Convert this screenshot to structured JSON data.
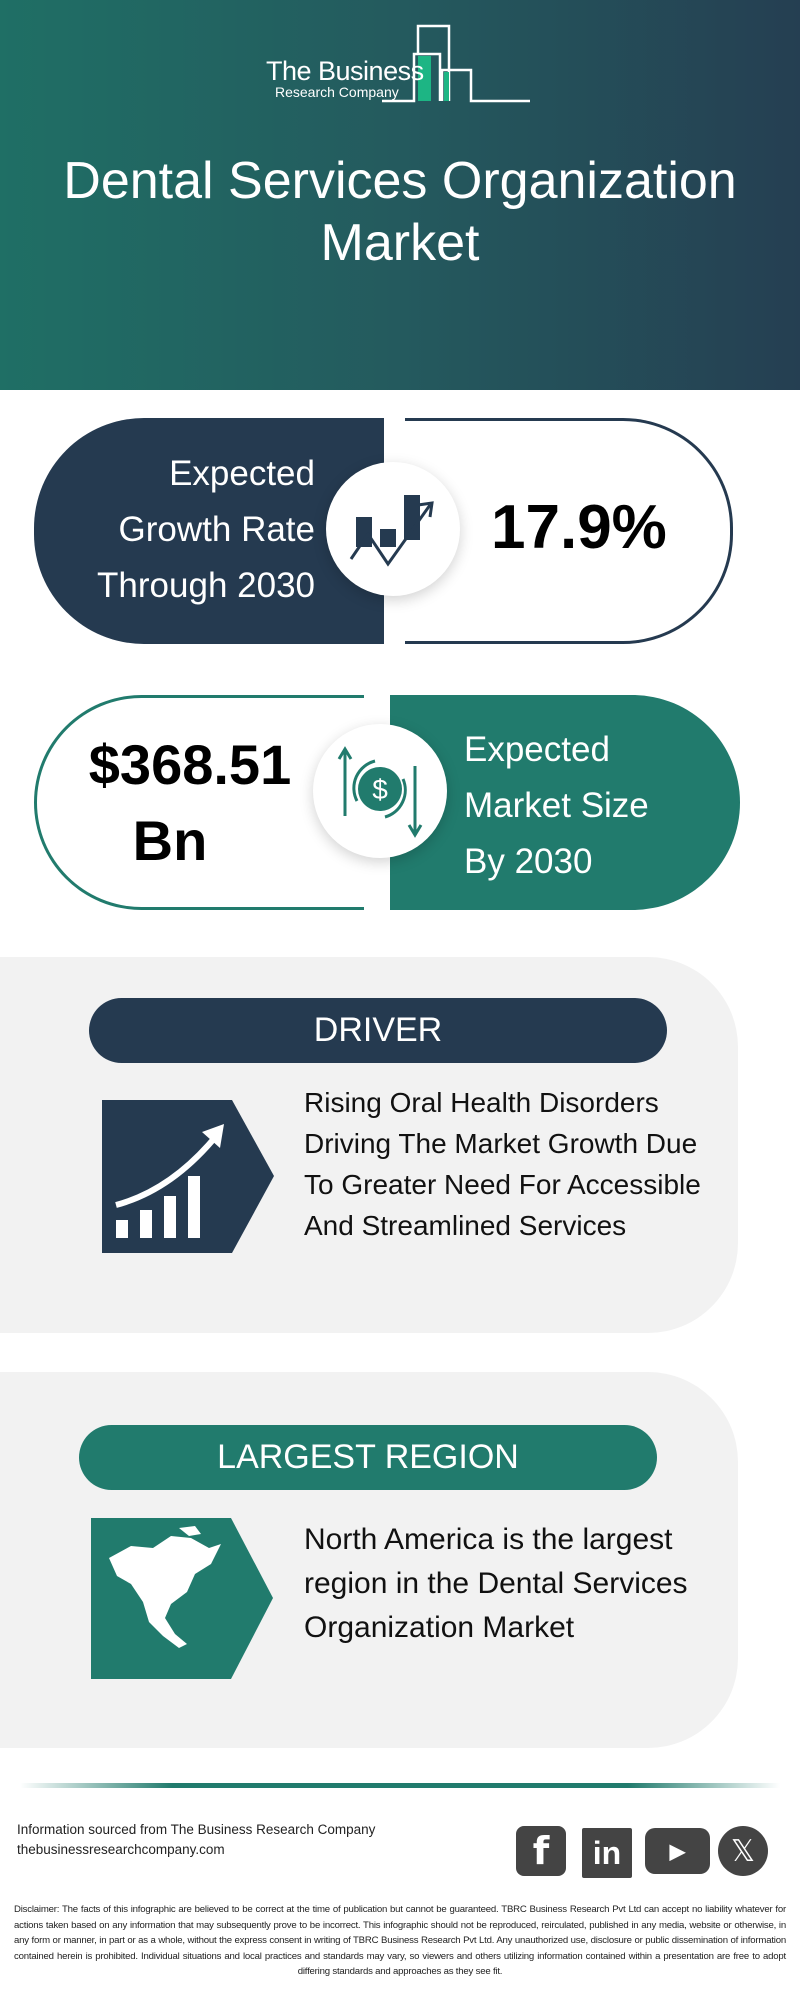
{
  "header": {
    "logo_line1": "The Business",
    "logo_line2": "Research Company",
    "title": "Dental Services Organization Market"
  },
  "growth": {
    "label_lines": [
      "Expected",
      "Growth Rate",
      "Through 2030"
    ],
    "value": "17.9%",
    "icon": "growth-chart-icon"
  },
  "market_size": {
    "value_line1": "$368.51",
    "value_line2": "Bn",
    "label_lines": [
      "Expected",
      "Market Size",
      "By 2030"
    ],
    "icon": "dollar-cycle-icon"
  },
  "driver": {
    "heading": "DRIVER",
    "text_lines": [
      "Rising Oral Health Disorders",
      "Driving The Market Growth Due",
      "To Greater Need For Accessible",
      "And Streamlined Services"
    ],
    "icon": "rising-bars-arrow-icon"
  },
  "region": {
    "heading": "LARGEST REGION",
    "text_lines": [
      "North America is the largest",
      "region in the Dental Services",
      "Organization Market"
    ],
    "icon": "north-america-map-icon"
  },
  "footer": {
    "source": "Information sourced from The Business Research Company",
    "website": "thebusinessresearchcompany.com",
    "social": [
      "facebook",
      "linkedin",
      "youtube",
      "x"
    ],
    "disclaimer": "Disclaimer: The facts of this infographic are believed to be correct at the time of publication but cannot be guaranteed. TBRC Business Research Pvt Ltd can accept no liability whatever for actions taken based on any information that may subsequently prove to be incorrect. This infographic should not be reproduced, reirculated, published in any media, website or otherwise, in any form or manner, in part or as a whole, without the express consent in writing of TBRC Business Research Pvt Ltd. Any unauthorized use, disclosure or public dissemination of information contained herein is prohibited. Individual situations and local practices and standards may vary, so viewers and others utilizing information contained within a presentation are free to adopt differing standards and approaches as they see fit."
  },
  "colors": {
    "navy": "#253a50",
    "teal": "#217b6d",
    "section_bg": "#f2f2f2",
    "logo_accent": "#1db584"
  }
}
